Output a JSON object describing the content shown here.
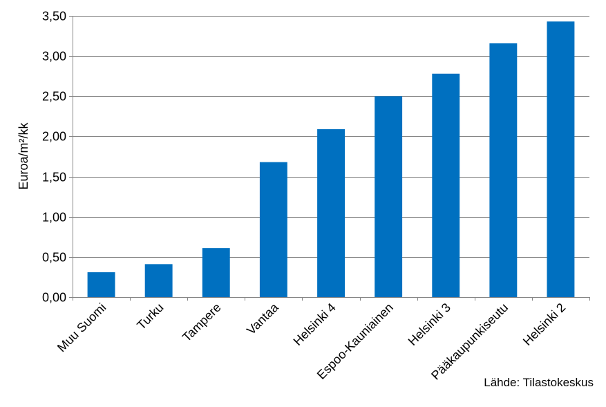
{
  "chart_data": {
    "type": "bar",
    "title": "",
    "xlabel": "",
    "ylabel": "Euroa/m²/kk",
    "categories": [
      "Muu Suomi",
      "Turku",
      "Tampere",
      "Vantaa",
      "Helsinki 4",
      "Espoo-Kauniainen",
      "Helsinki 3",
      "Pääkaupunkiseutu",
      "Helsinki 2"
    ],
    "values": [
      0.31,
      0.41,
      0.61,
      1.68,
      2.09,
      2.5,
      2.78,
      3.16,
      3.43
    ],
    "ylim": [
      0,
      3.5
    ],
    "yticks": [
      "0,00",
      "0,50",
      "1,00",
      "1,50",
      "2,00",
      "2,50",
      "3,00",
      "3,50"
    ],
    "ytick_values": [
      0,
      0.5,
      1,
      1.5,
      2,
      2.5,
      3,
      3.5
    ],
    "grid": true,
    "legend": "none",
    "bar_color": "#0070C0",
    "grid_color": "#868686"
  },
  "source_note": "Lähde: Tilastokeskus"
}
